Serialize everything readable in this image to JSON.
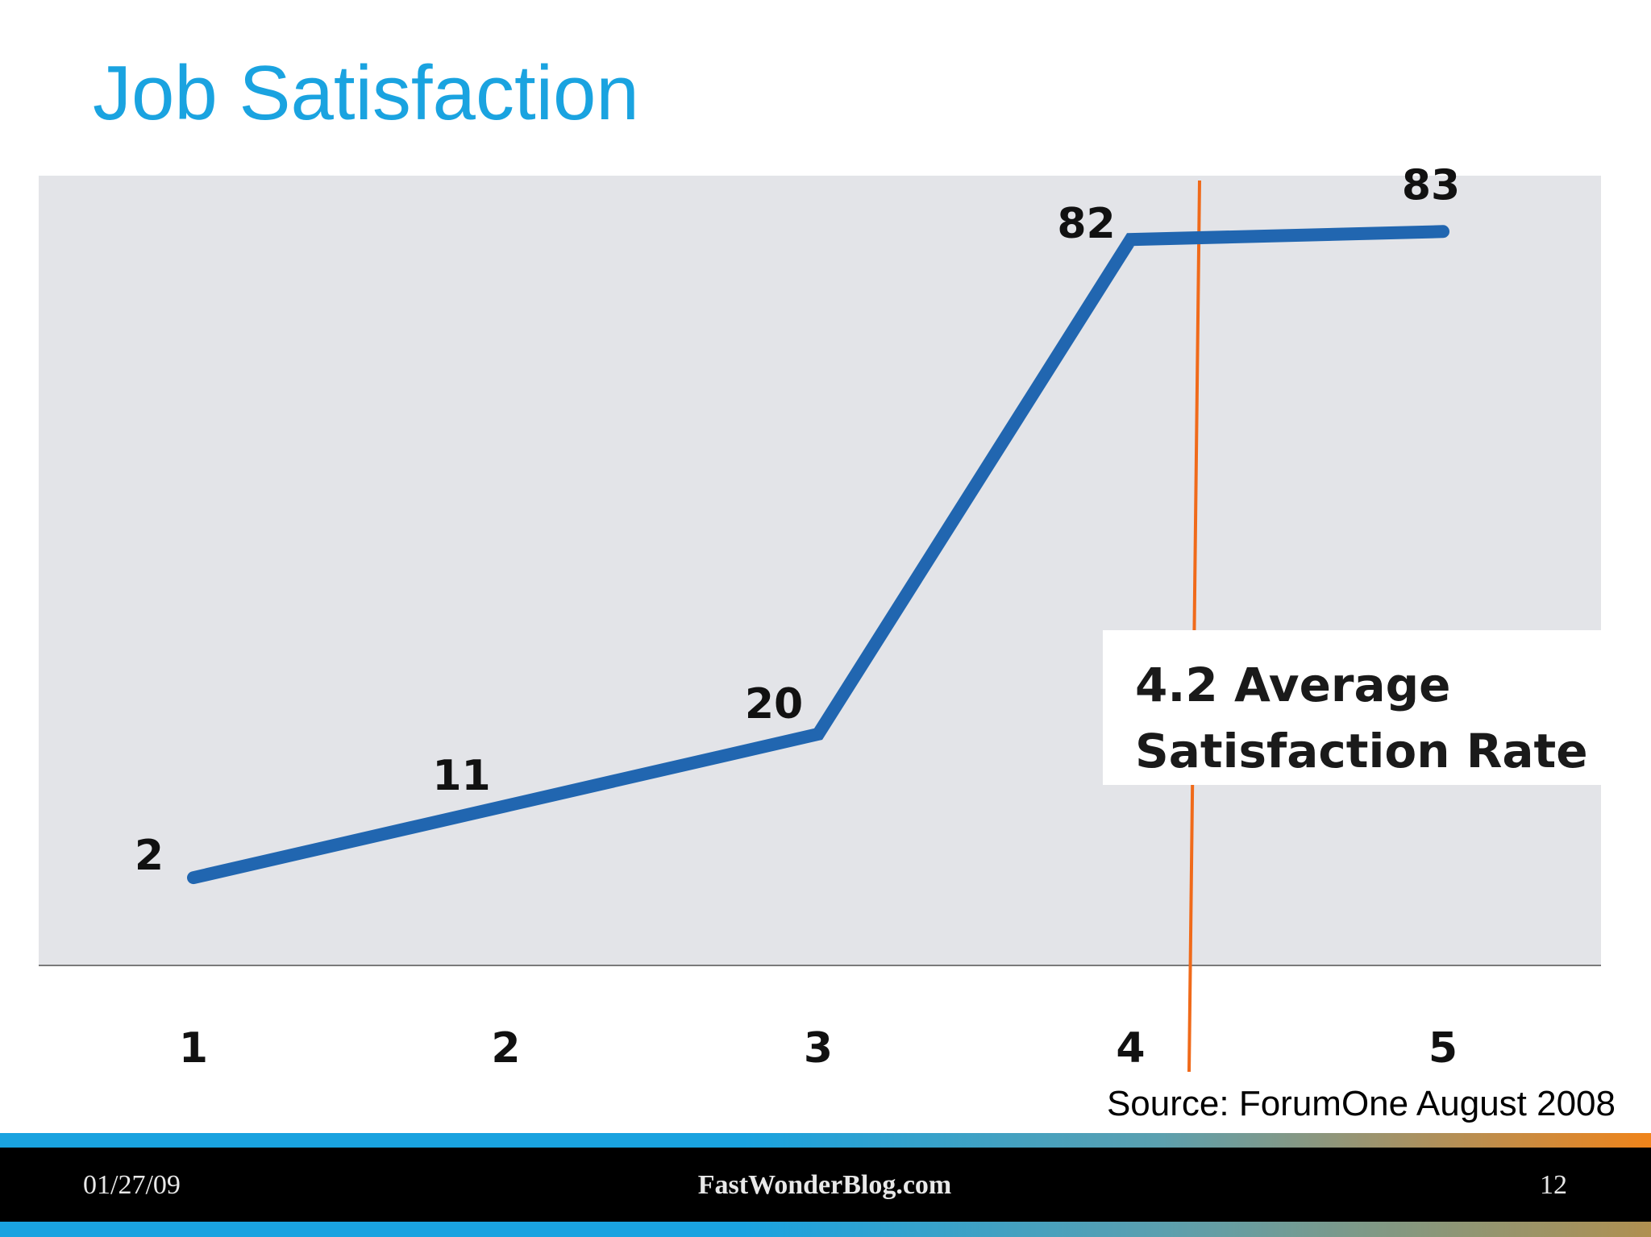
{
  "slide": {
    "title": "Job Satisfaction",
    "source": "Source: ForumOne August 2008"
  },
  "footer": {
    "date": "01/27/09",
    "site": "FastWonderBlog.com",
    "page": "12"
  },
  "colors": {
    "title": "#1aa3e0",
    "line": "#2166b0",
    "reference_line": "#f06a1a",
    "plot_background": "#e3e4e8"
  },
  "chart_data": {
    "type": "line",
    "title": "",
    "xlabel": "",
    "ylabel": "",
    "x": [
      1,
      2,
      3,
      4,
      5
    ],
    "categories": [
      "1",
      "2",
      "3",
      "4",
      "5"
    ],
    "series": [
      {
        "values": [
          2,
          11,
          20,
          82,
          83
        ],
        "labels": [
          "2",
          "11",
          "20",
          "82",
          "83"
        ]
      }
    ],
    "ylim": [
      -9,
      90
    ],
    "xlim": [
      0.5,
      5.5
    ],
    "grid": false,
    "reference_line": {
      "x": 4.2,
      "label_line1": "4.2 Average",
      "label_line2": "Satisfaction Rate"
    }
  }
}
